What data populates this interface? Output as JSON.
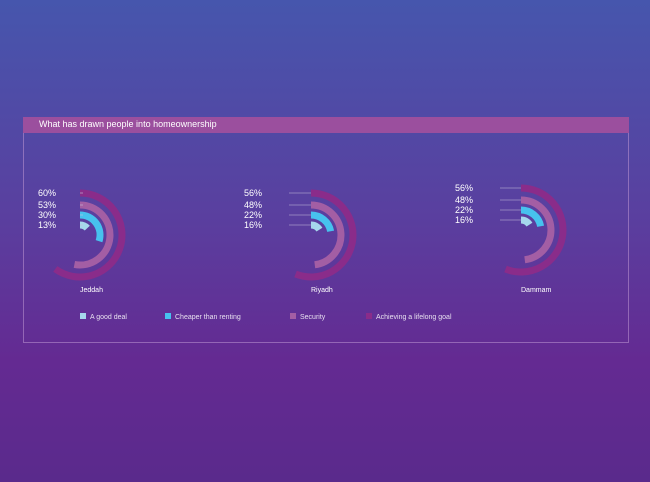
{
  "chart_data": {
    "type": "radial-bar",
    "title": "What has drawn people into homeownership",
    "series": [
      {
        "name": "A good deal",
        "color": "#a6d7ec"
      },
      {
        "name": "Cheaper than renting",
        "color": "#47c2ee"
      },
      {
        "name": "Security",
        "color": "#a35ea4"
      },
      {
        "name": "Achieving a lifelong goal",
        "color": "#8a2c8a"
      }
    ],
    "groups": [
      {
        "name": "Jeddah",
        "values": [
          13,
          30,
          53,
          60
        ],
        "labels": [
          "60%",
          "53%",
          "30%",
          "13%"
        ]
      },
      {
        "name": "Riyadh",
        "values": [
          16,
          22,
          48,
          56
        ],
        "labels": [
          "56%",
          "48%",
          "22%",
          "16%"
        ]
      },
      {
        "name": "Dammam",
        "values": [
          16,
          22,
          48,
          56
        ],
        "labels": [
          "56%",
          "48%",
          "22%",
          "16%"
        ]
      }
    ]
  }
}
